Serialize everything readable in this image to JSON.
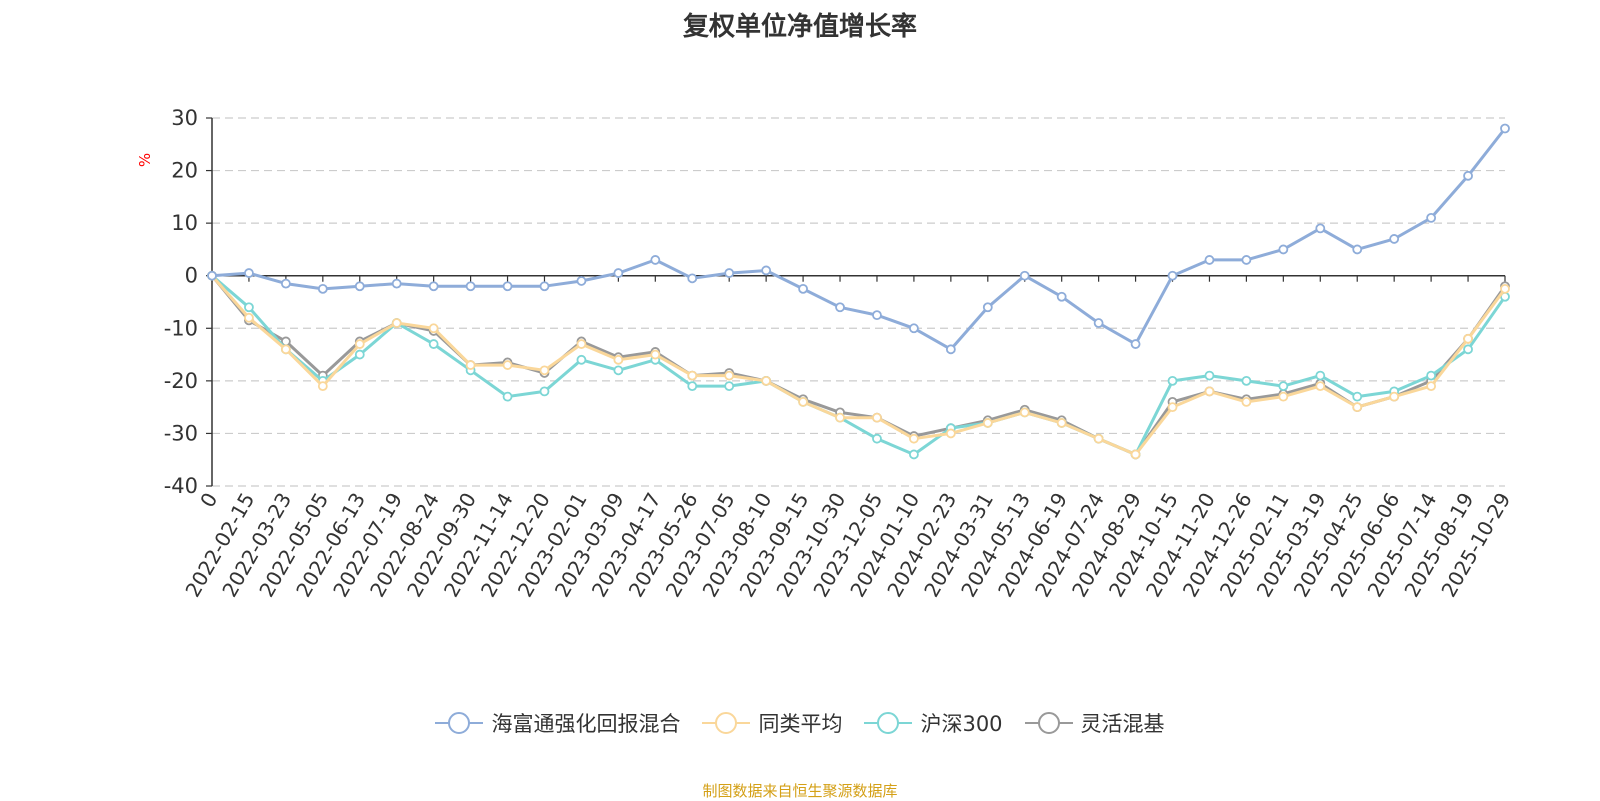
{
  "chart_data": {
    "type": "line",
    "title": "复权单位净值增长率",
    "ylabel": "%",
    "ylim": [
      -40,
      30
    ],
    "y_ticks": [
      "30",
      "20",
      "10",
      "0",
      "-10",
      "-20",
      "-30",
      "-40"
    ],
    "grid": true,
    "legend_position": "bottom",
    "source": "制图数据来自恒生聚源数据库",
    "x_tick_labels": [
      "0",
      "2022-02-15",
      "2022-03-23",
      "2022-05-05",
      "2022-06-13",
      "2022-07-19",
      "2022-08-24",
      "2022-09-30",
      "2022-11-14",
      "2022-12-20",
      "2023-02-01",
      "2023-03-09",
      "2023-04-17",
      "2023-05-26",
      "2023-07-05",
      "2023-08-10",
      "2023-09-15",
      "2023-10-30",
      "2023-12-05",
      "2024-01-10",
      "2024-02-23",
      "2024-03-31",
      "2024-05-13",
      "2024-06-19",
      "2024-07-24",
      "2024-08-29",
      "2024-10-15",
      "2024-11-20",
      "2024-12-26",
      "2025-02-11",
      "2025-03-19",
      "2025-04-25",
      "2025-06-06",
      "2025-07-14",
      "2025-08-19",
      "2025-10-29"
    ],
    "x": [
      "0",
      "2022-02-15",
      "2022-03-23",
      "2022-05-05",
      "2022-06-13",
      "2022-07-19",
      "2022-08-24",
      "2022-09-30",
      "2022-11-14",
      "2022-12-20",
      "2023-02-01",
      "2023-03-09",
      "2023-04-17",
      "2023-05-26",
      "2023-07-05",
      "2023-08-10",
      "2023-09-15",
      "2023-10-30",
      "2023-12-05",
      "2024-01-10",
      "2024-02-23",
      "2024-03-31",
      "2024-05-13",
      "2024-06-19",
      "2024-07-24",
      "2024-08-29",
      "2024-10-15",
      "2024-11-20",
      "2024-12-26",
      "2025-02-11",
      "2025-03-19",
      "2025-04-25",
      "2025-06-06",
      "2025-07-14",
      "2025-08-19",
      "2025-10-29"
    ],
    "series": [
      {
        "name": "海富通强化回报混合",
        "color": "#8eacd9",
        "values": [
          0,
          0.5,
          -1.5,
          -2.5,
          -2.0,
          -1.5,
          -2.0,
          -2.0,
          -2.0,
          -2.0,
          -1.0,
          0.5,
          3.0,
          -0.5,
          0.5,
          1.0,
          -2.5,
          -6.0,
          -7.5,
          -10.0,
          -14.0,
          -6.0,
          0.0,
          -4.0,
          -9.0,
          -13.0,
          0.0,
          3.0,
          3.0,
          5.0,
          9.0,
          5.0,
          7.0,
          11.0,
          19.0,
          28.0
        ]
      },
      {
        "name": "同类平均",
        "color": "#fad79a",
        "values": [
          0,
          -8.0,
          -14.0,
          -21.0,
          -13.0,
          -9.0,
          -10.0,
          -17.0,
          -17.0,
          -18.0,
          -13.0,
          -16.0,
          -15.0,
          -19.0,
          -19.0,
          -20.0,
          -24.0,
          -27.0,
          -27.0,
          -31.0,
          -30.0,
          -28.0,
          -26.0,
          -28.0,
          -31.0,
          -34.0,
          -25.0,
          -22.0,
          -24.0,
          -23.0,
          -21.0,
          -25.0,
          -23.0,
          -21.0,
          -12.0,
          -2.5
        ]
      },
      {
        "name": "沪深300",
        "color": "#7cd6d5",
        "values": [
          0,
          -6.0,
          -14.0,
          -20.0,
          -15.0,
          -9.0,
          -13.0,
          -18.0,
          -23.0,
          -22.0,
          -16.0,
          -18.0,
          -16.0,
          -21.0,
          -21.0,
          -20.0,
          -24.0,
          -27.0,
          -31.0,
          -34.0,
          -29.0,
          -28.0,
          -26.0,
          -28.0,
          -31.0,
          -34.0,
          -20.0,
          -19.0,
          -20.0,
          -21.0,
          -19.0,
          -23.0,
          -22.0,
          -19.0,
          -14.0,
          -4.0
        ]
      },
      {
        "name": "灵活混基",
        "color": "#999999",
        "values": [
          0,
          -8.5,
          -12.5,
          -19.0,
          -12.5,
          -9.0,
          -10.5,
          -17.0,
          -16.5,
          -18.5,
          -12.5,
          -15.5,
          -14.5,
          -19.0,
          -18.5,
          -20.0,
          -23.5,
          -26.0,
          -27.0,
          -30.5,
          -29.0,
          -27.5,
          -25.5,
          -27.5,
          -31.0,
          -34.0,
          -24.0,
          -22.0,
          -23.5,
          -22.5,
          -20.5,
          -25.0,
          -23.0,
          -20.0,
          -12.0,
          -2.0
        ]
      }
    ]
  }
}
